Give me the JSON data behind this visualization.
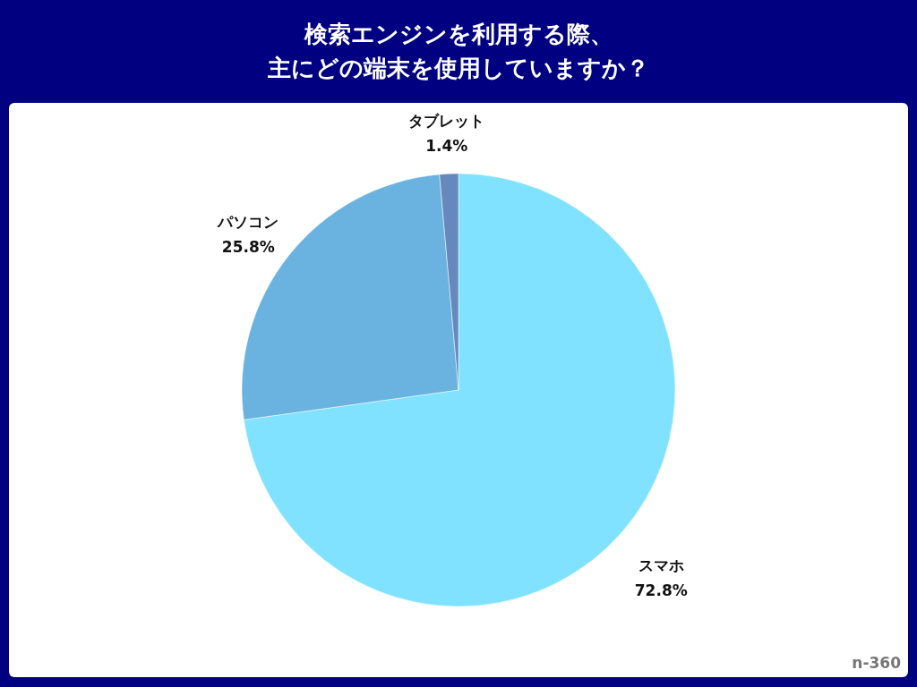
{
  "chart_data": {
    "type": "pie",
    "title": "検索エンジンを利用する際、主にどの端末を使用していますか？",
    "categories": [
      "スマホ",
      "パソコン",
      "タブレット"
    ],
    "values": [
      72.8,
      25.8,
      1.4
    ],
    "value_labels": [
      "72.8%",
      "25.8%",
      "1.4%"
    ],
    "colors": [
      "#80e2fe",
      "#6ab3e1",
      "#6689bd"
    ],
    "annotations": [
      "n-360"
    ]
  }
}
